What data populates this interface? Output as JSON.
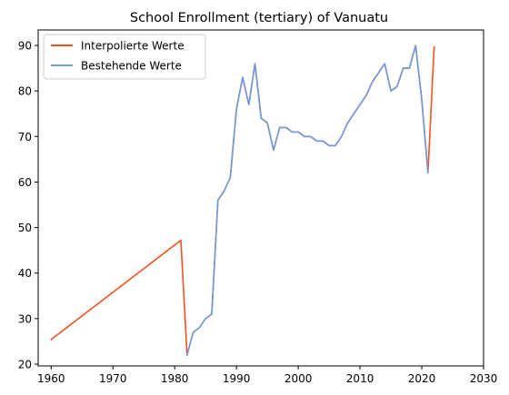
{
  "chart_data": {
    "type": "line",
    "title": "School Enrollment (tertiary) of Vanuatu",
    "xlabel": "",
    "ylabel": "",
    "xlim": [
      1957.9,
      2030
    ],
    "ylim": [
      19.6,
      93.4
    ],
    "xticks": [
      1960,
      1970,
      1980,
      1990,
      2000,
      2010,
      2020,
      2030
    ],
    "yticks": [
      20,
      30,
      40,
      50,
      60,
      70,
      80,
      90
    ],
    "legend_position": "top-left",
    "grid": false,
    "series": [
      {
        "name": "Interpolierte Werte",
        "color": "#f4511e",
        "points": [
          [
            1960,
            25.4
          ],
          [
            1981,
            47.2
          ],
          [
            1982,
            22.0
          ],
          [
            1983,
            27.0
          ],
          [
            1984,
            28.0
          ],
          [
            1985,
            30.0
          ],
          [
            1986,
            31.0
          ],
          [
            1987,
            56.0
          ],
          [
            1988,
            58.0
          ],
          [
            1989,
            61.0
          ],
          [
            1990,
            76.0
          ],
          [
            1991,
            83.0
          ],
          [
            1992,
            77.0
          ],
          [
            1993,
            86.0
          ],
          [
            1994,
            74.0
          ],
          [
            1995,
            73.0
          ],
          [
            1996,
            67.0
          ],
          [
            1997,
            72.0
          ],
          [
            1998,
            72.0
          ],
          [
            1999,
            71.0
          ],
          [
            2000,
            71.0
          ],
          [
            2001,
            70.0
          ],
          [
            2002,
            70.0
          ],
          [
            2003,
            69.0
          ],
          [
            2004,
            69.0
          ],
          [
            2005,
            68.0
          ],
          [
            2006,
            68.0
          ],
          [
            2007,
            70.0
          ],
          [
            2008,
            73.0
          ],
          [
            2009,
            75.0
          ],
          [
            2010,
            77.0
          ],
          [
            2011,
            79.0
          ],
          [
            2012,
            82.0
          ],
          [
            2013,
            84.0
          ],
          [
            2014,
            86.0
          ],
          [
            2015,
            80.0
          ],
          [
            2016,
            81.0
          ],
          [
            2017,
            85.0
          ],
          [
            2018,
            85.0
          ],
          [
            2019,
            90.0
          ],
          [
            2020,
            78.0
          ],
          [
            2021,
            62.0
          ],
          [
            2022,
            89.7
          ]
        ]
      },
      {
        "name": "Bestehende Werte",
        "color": "#6f9ae0",
        "points": [
          [
            1982,
            22.0
          ],
          [
            1983,
            27.0
          ],
          [
            1984,
            28.0
          ],
          [
            1985,
            30.0
          ],
          [
            1986,
            31.0
          ],
          [
            1987,
            56.0
          ],
          [
            1988,
            58.0
          ],
          [
            1989,
            61.0
          ],
          [
            1990,
            76.0
          ],
          [
            1991,
            83.0
          ],
          [
            1992,
            77.0
          ],
          [
            1993,
            86.0
          ],
          [
            1994,
            74.0
          ],
          [
            1995,
            73.0
          ],
          [
            1996,
            67.0
          ],
          [
            1997,
            72.0
          ],
          [
            1998,
            72.0
          ],
          [
            1999,
            71.0
          ],
          [
            2000,
            71.0
          ],
          [
            2001,
            70.0
          ],
          [
            2002,
            70.0
          ],
          [
            2003,
            69.0
          ],
          [
            2004,
            69.0
          ],
          [
            2005,
            68.0
          ],
          [
            2006,
            68.0
          ],
          [
            2007,
            70.0
          ],
          [
            2008,
            73.0
          ],
          [
            2009,
            75.0
          ],
          [
            2010,
            77.0
          ],
          [
            2011,
            79.0
          ],
          [
            2012,
            82.0
          ],
          [
            2013,
            84.0
          ],
          [
            2014,
            86.0
          ],
          [
            2015,
            80.0
          ],
          [
            2016,
            81.0
          ],
          [
            2017,
            85.0
          ],
          [
            2018,
            85.0
          ],
          [
            2019,
            90.0
          ],
          [
            2020,
            78.0
          ],
          [
            2021,
            62.0
          ]
        ]
      }
    ]
  }
}
